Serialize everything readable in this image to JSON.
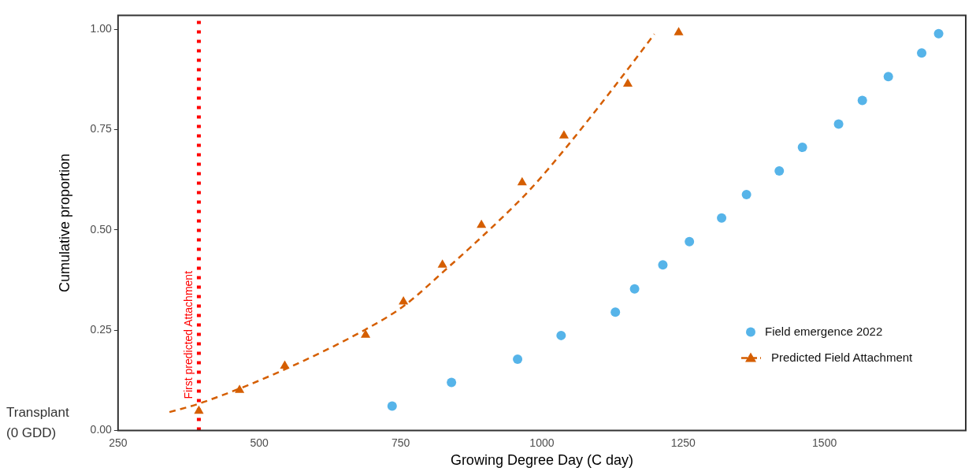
{
  "chart_data": {
    "type": "scatter",
    "xlabel": "Growing Degree Day (C day)",
    "ylabel": "Cumulative proportion",
    "xlim": [
      250,
      1750
    ],
    "xticks": [
      250,
      500,
      750,
      1000,
      1250,
      1500
    ],
    "ylim": [
      0,
      1.035
    ],
    "yticks": [
      {
        "value": 0,
        "label": "0.00"
      },
      {
        "value": 0.25,
        "label": "0.25"
      },
      {
        "value": 0.5,
        "label": "0.50"
      },
      {
        "value": 0.75,
        "label": "0.75"
      },
      {
        "value": 1,
        "label": "1.00"
      }
    ],
    "grid": false,
    "legend": "bottom right",
    "series": [
      {
        "name": "Field emergence 2022",
        "marker": "circle",
        "color": "#56b4e9",
        "x": [
          735,
          840,
          957,
          1034,
          1130,
          1164,
          1214,
          1261,
          1318,
          1362,
          1420,
          1461,
          1525,
          1567,
          1613,
          1672,
          1702
        ],
        "values": [
          0.061,
          0.12,
          0.178,
          0.237,
          0.295,
          0.353,
          0.413,
          0.471,
          0.53,
          0.588,
          0.647,
          0.706,
          0.764,
          0.823,
          0.882,
          0.941,
          0.989
        ]
      },
      {
        "name": "Predicted Field Attachment",
        "marker": "triangle",
        "color": "#d55e00",
        "x": [
          393,
          465,
          545,
          688,
          755,
          824,
          893,
          965,
          1039,
          1152,
          1242
        ],
        "values": [
          0.049,
          0.101,
          0.161,
          0.238,
          0.321,
          0.413,
          0.512,
          0.618,
          0.735,
          0.864,
          0.992
        ]
      },
      {
        "type": "line",
        "marker": "none",
        "line_style": "dashed",
        "color": "#d55e00",
        "x": [
          341,
          393,
          538,
          688,
          755,
          832,
          921,
          980,
          1049,
          1132,
          1199
        ],
        "values": [
          0.046,
          0.067,
          0.148,
          0.252,
          0.31,
          0.404,
          0.519,
          0.602,
          0.716,
          0.864,
          0.988
        ]
      }
    ],
    "ref_lines": [
      {
        "axis": "x",
        "value": 393,
        "label": "First predicted Attachment",
        "color": "#ff0000",
        "line_style": "dotted"
      }
    ],
    "annotations": [
      "Transplant\n(0 GDD)"
    ]
  }
}
